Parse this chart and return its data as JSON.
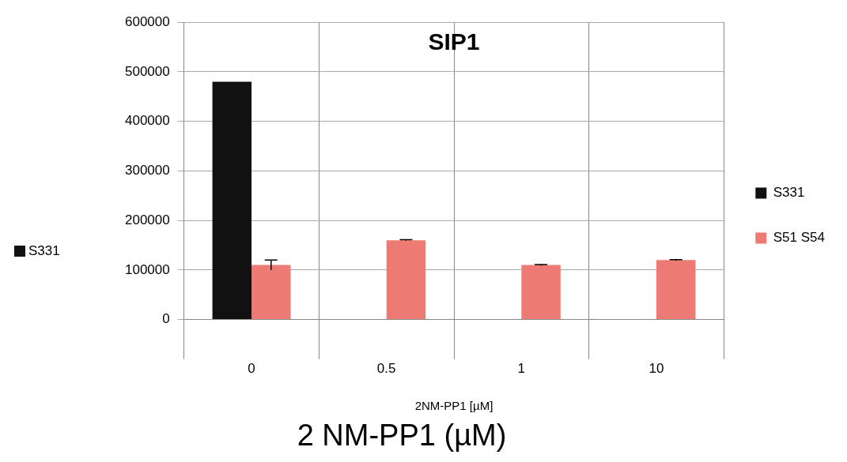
{
  "chart_data": {
    "type": "bar",
    "title": "SIP1",
    "xlabel": "2NM-PP1 [µM]",
    "categories": [
      "0",
      "0.5",
      "1",
      "10"
    ],
    "series": [
      {
        "name": "S331",
        "color": "#111111",
        "values": [
          480000,
          null,
          null,
          null
        ]
      },
      {
        "name": "S51 S54",
        "color": "#ee7b73",
        "values": [
          110000,
          160000,
          110000,
          120000
        ],
        "errors": [
          10000,
          1000,
          1000,
          1000
        ]
      }
    ],
    "ylim": [
      0,
      600000
    ],
    "yticks": [
      0,
      100000,
      200000,
      300000,
      400000,
      500000,
      600000
    ],
    "grid": true,
    "legend": "right",
    "annotations": [
      "S331",
      "2 NM-PP1 (µM)"
    ]
  }
}
